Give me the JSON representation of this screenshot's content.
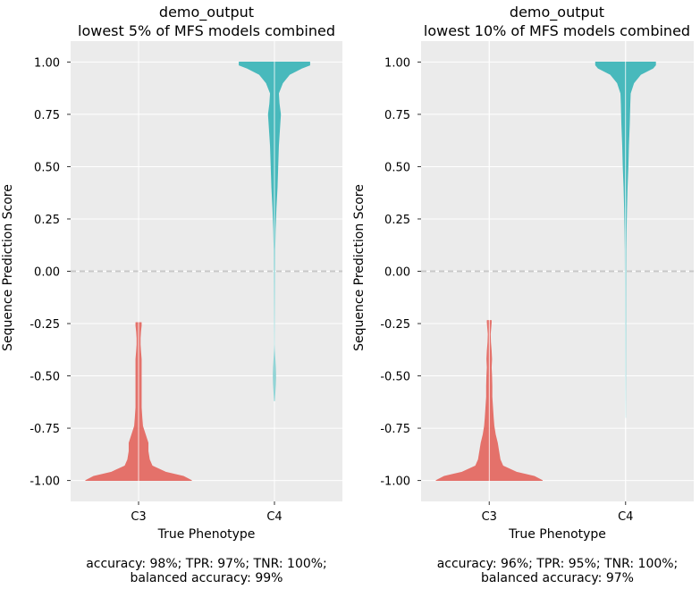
{
  "colors": {
    "background": "#ebebeb",
    "grid": "#ffffff",
    "zero_line": "#c8c8c8",
    "C3": "#e4716a",
    "C4": "#48b9bc"
  },
  "chart_data": [
    {
      "type": "violin",
      "title": [
        "demo_output",
        "lowest 5% of MFS models combined"
      ],
      "xlabel": "True Phenotype",
      "ylabel": "Sequence Prediction Score",
      "categories": [
        "C3",
        "C4"
      ],
      "ylim": [
        -1.1,
        1.1
      ],
      "yticks": [
        "1.00",
        "0.75",
        "0.50",
        "0.25",
        "0.00",
        "-0.25",
        "-0.50",
        "-0.75",
        "-1.00"
      ],
      "ytick_values": [
        1.0,
        0.75,
        0.5,
        0.25,
        0.0,
        -0.25,
        -0.5,
        -0.75,
        -1.0
      ],
      "grid": true,
      "reference_line": 0.0,
      "series": [
        {
          "category": "C3",
          "color_key": "C3",
          "profile": [
            [
              -1.0,
              0.39
            ],
            [
              -0.98,
              0.33
            ],
            [
              -0.96,
              0.2
            ],
            [
              -0.93,
              0.1
            ],
            [
              -0.9,
              0.08
            ],
            [
              -0.86,
              0.07
            ],
            [
              -0.82,
              0.07
            ],
            [
              -0.78,
              0.05
            ],
            [
              -0.74,
              0.03
            ],
            [
              -0.7,
              0.025
            ],
            [
              -0.65,
              0.02
            ],
            [
              -0.6,
              0.02
            ],
            [
              -0.55,
              0.02
            ],
            [
              -0.5,
              0.02
            ],
            [
              -0.46,
              0.02
            ],
            [
              -0.42,
              0.02
            ],
            [
              -0.38,
              0.015
            ],
            [
              -0.35,
              0.012
            ],
            [
              -0.32,
              0.012
            ],
            [
              -0.29,
              0.015
            ],
            [
              -0.26,
              0.02
            ],
            [
              -0.245,
              0.02
            ]
          ]
        },
        {
          "category": "C4",
          "color_key": "C4",
          "profile": [
            [
              -0.62,
              0.002
            ],
            [
              -0.58,
              0.004
            ],
            [
              -0.54,
              0.006
            ],
            [
              -0.5,
              0.007
            ],
            [
              -0.46,
              0.006
            ],
            [
              -0.42,
              0.004
            ],
            [
              -0.38,
              0.002
            ],
            [
              -0.35,
              0.001
            ],
            [
              0.1,
              0.003
            ],
            [
              0.2,
              0.006
            ],
            [
              0.3,
              0.012
            ],
            [
              0.4,
              0.02
            ],
            [
              0.5,
              0.025
            ],
            [
              0.6,
              0.03
            ],
            [
              0.7,
              0.04
            ],
            [
              0.75,
              0.045
            ],
            [
              0.8,
              0.035
            ],
            [
              0.85,
              0.03
            ],
            [
              0.9,
              0.06
            ],
            [
              0.94,
              0.11
            ],
            [
              0.97,
              0.2
            ],
            [
              0.985,
              0.26
            ],
            [
              0.995,
              0.26
            ],
            [
              1.0,
              0.26
            ]
          ]
        }
      ],
      "footer": [
        "accuracy: 98%; TPR: 97%; TNR: 100%;",
        "balanced accuracy: 99%"
      ]
    },
    {
      "type": "violin",
      "title": [
        "demo_output",
        "lowest 10% of MFS models combined"
      ],
      "xlabel": "True Phenotype",
      "ylabel": "Sequence Prediction Score",
      "categories": [
        "C3",
        "C4"
      ],
      "ylim": [
        -1.1,
        1.1
      ],
      "yticks": [
        "1.00",
        "0.75",
        "0.50",
        "0.25",
        "0.00",
        "-0.25",
        "-0.50",
        "-0.75",
        "-1.00"
      ],
      "ytick_values": [
        1.0,
        0.75,
        0.5,
        0.25,
        0.0,
        -0.25,
        -0.5,
        -0.75,
        -1.0
      ],
      "grid": true,
      "reference_line": 0.0,
      "series": [
        {
          "category": "C3",
          "color_key": "C3",
          "profile": [
            [
              -1.0,
              0.39
            ],
            [
              -0.98,
              0.33
            ],
            [
              -0.96,
              0.2
            ],
            [
              -0.93,
              0.1
            ],
            [
              -0.9,
              0.08
            ],
            [
              -0.86,
              0.07
            ],
            [
              -0.82,
              0.06
            ],
            [
              -0.78,
              0.045
            ],
            [
              -0.74,
              0.035
            ],
            [
              -0.7,
              0.03
            ],
            [
              -0.65,
              0.025
            ],
            [
              -0.6,
              0.02
            ],
            [
              -0.55,
              0.02
            ],
            [
              -0.5,
              0.018
            ],
            [
              -0.46,
              0.015
            ],
            [
              -0.42,
              0.018
            ],
            [
              -0.38,
              0.015
            ],
            [
              -0.34,
              0.01
            ],
            [
              -0.3,
              0.008
            ],
            [
              -0.27,
              0.012
            ],
            [
              -0.245,
              0.015
            ],
            [
              -0.235,
              0.015
            ]
          ]
        },
        {
          "category": "C4",
          "color_key": "C4",
          "profile": [
            [
              -0.7,
              0.0
            ],
            [
              -0.5,
              0.001
            ],
            [
              -0.3,
              0.0015
            ],
            [
              -0.1,
              0.002
            ],
            [
              0.1,
              0.003
            ],
            [
              0.2,
              0.005
            ],
            [
              0.3,
              0.008
            ],
            [
              0.4,
              0.012
            ],
            [
              0.5,
              0.018
            ],
            [
              0.6,
              0.022
            ],
            [
              0.7,
              0.028
            ],
            [
              0.75,
              0.03
            ],
            [
              0.8,
              0.032
            ],
            [
              0.85,
              0.035
            ],
            [
              0.9,
              0.06
            ],
            [
              0.94,
              0.11
            ],
            [
              0.97,
              0.2
            ],
            [
              0.985,
              0.22
            ],
            [
              0.995,
              0.22
            ],
            [
              1.0,
              0.22
            ]
          ]
        }
      ],
      "footer": [
        "accuracy: 96%; TPR: 95%; TNR: 100%;",
        "balanced accuracy: 97%"
      ]
    }
  ]
}
